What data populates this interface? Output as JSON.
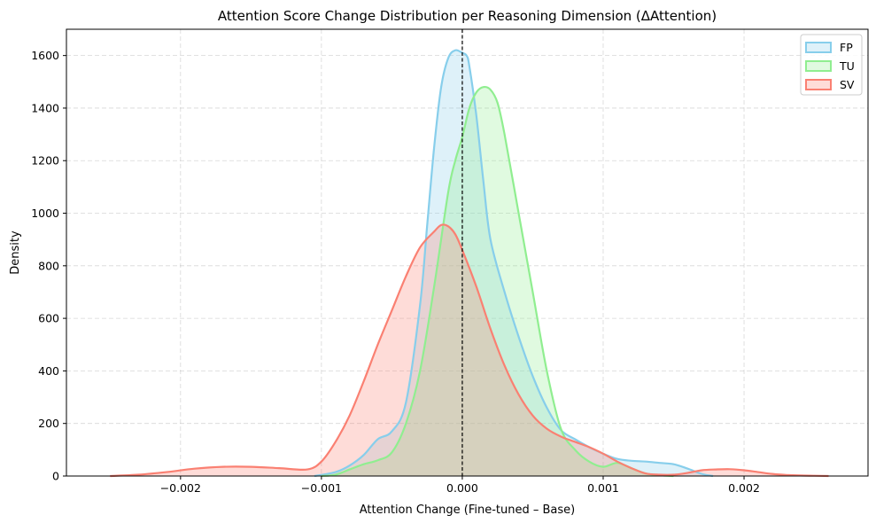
{
  "chart_data": {
    "type": "area",
    "title": "Attention Score Change Distribution per Reasoning Dimension (ΔAttention)",
    "xlabel": "Attention Change (Fine-tuned – Base)",
    "ylabel": "Density",
    "xlim": [
      -0.00281,
      0.00288
    ],
    "ylim": [
      0,
      1700
    ],
    "xticks": [
      -0.002,
      -0.001,
      0.0,
      0.001,
      0.002
    ],
    "xtick_labels": [
      "−0.002",
      "−0.001",
      "0.000",
      "0.001",
      "0.002"
    ],
    "yticks": [
      0,
      200,
      400,
      600,
      800,
      1000,
      1200,
      1400,
      1600
    ],
    "ytick_labels": [
      "0",
      "200",
      "400",
      "600",
      "800",
      "1000",
      "1200",
      "1400",
      "1600"
    ],
    "grid": true,
    "legend_position": "top-right",
    "reference_line_x": 0.0,
    "series": [
      {
        "name": "FP",
        "color": "#87ceeb",
        "x": [
          -0.00105,
          -0.0009,
          -0.0008,
          -0.0007,
          -0.0006,
          -0.0005,
          -0.0004,
          -0.0003,
          -0.00025,
          -0.0002,
          -0.00015,
          -0.0001,
          -5e-05,
          0.0,
          3e-05,
          5e-05,
          0.0001,
          0.00015,
          0.0002,
          0.0003,
          0.0004,
          0.0005,
          0.0006,
          0.0007,
          0.0008,
          0.0009,
          0.001,
          0.0011,
          0.0012,
          0.0013,
          0.0014,
          0.0015,
          0.0016,
          0.0017,
          0.00178
        ],
        "y": [
          0,
          15,
          40,
          80,
          140,
          170,
          280,
          650,
          950,
          1250,
          1480,
          1590,
          1620,
          1610,
          1600,
          1560,
          1370,
          1120,
          900,
          700,
          530,
          380,
          260,
          175,
          140,
          110,
          85,
          65,
          58,
          55,
          50,
          45,
          28,
          8,
          0
        ]
      },
      {
        "name": "TU",
        "color": "#90ee90",
        "x": [
          -0.001,
          -0.0009,
          -0.0008,
          -0.0007,
          -0.0006,
          -0.0005,
          -0.0004,
          -0.0003,
          -0.0002,
          -0.0001,
          -5e-05,
          0.0,
          5e-05,
          0.0001,
          0.00015,
          0.0002,
          0.00025,
          0.0003,
          0.0004,
          0.0005,
          0.0006,
          0.0007,
          0.0008,
          0.0009,
          0.001,
          0.0011,
          0.0012,
          0.0013,
          0.0014,
          0.0015
        ],
        "y": [
          0,
          5,
          25,
          45,
          60,
          90,
          200,
          400,
          720,
          1080,
          1200,
          1290,
          1400,
          1460,
          1480,
          1470,
          1420,
          1300,
          1000,
          700,
          400,
          180,
          100,
          55,
          35,
          50,
          30,
          10,
          3,
          0
        ]
      },
      {
        "name": "SV",
        "color": "#fa8072",
        "x": [
          -0.0025,
          -0.0023,
          -0.0021,
          -0.0019,
          -0.0017,
          -0.0015,
          -0.0013,
          -0.0011,
          -0.001,
          -0.0009,
          -0.0008,
          -0.0007,
          -0.0006,
          -0.0005,
          -0.0004,
          -0.0003,
          -0.0002,
          -0.00015,
          -0.0001,
          -5e-05,
          0.0,
          0.0001,
          0.0002,
          0.0003,
          0.0004,
          0.0005,
          0.0006,
          0.0007,
          0.0008,
          0.0009,
          0.001,
          0.0011,
          0.0012,
          0.0013,
          0.0014,
          0.0015,
          0.0016,
          0.0017,
          0.0018,
          0.0019,
          0.002,
          0.0021,
          0.0022,
          0.0023,
          0.0024,
          0.0025,
          0.0026
        ],
        "y": [
          0,
          5,
          15,
          28,
          35,
          35,
          30,
          25,
          55,
          130,
          230,
          360,
          500,
          630,
          760,
          870,
          930,
          955,
          950,
          920,
          860,
          720,
          560,
          420,
          310,
          230,
          180,
          150,
          130,
          110,
          85,
          55,
          30,
          10,
          5,
          5,
          12,
          22,
          25,
          26,
          22,
          15,
          8,
          4,
          2,
          1,
          0
        ]
      }
    ]
  }
}
